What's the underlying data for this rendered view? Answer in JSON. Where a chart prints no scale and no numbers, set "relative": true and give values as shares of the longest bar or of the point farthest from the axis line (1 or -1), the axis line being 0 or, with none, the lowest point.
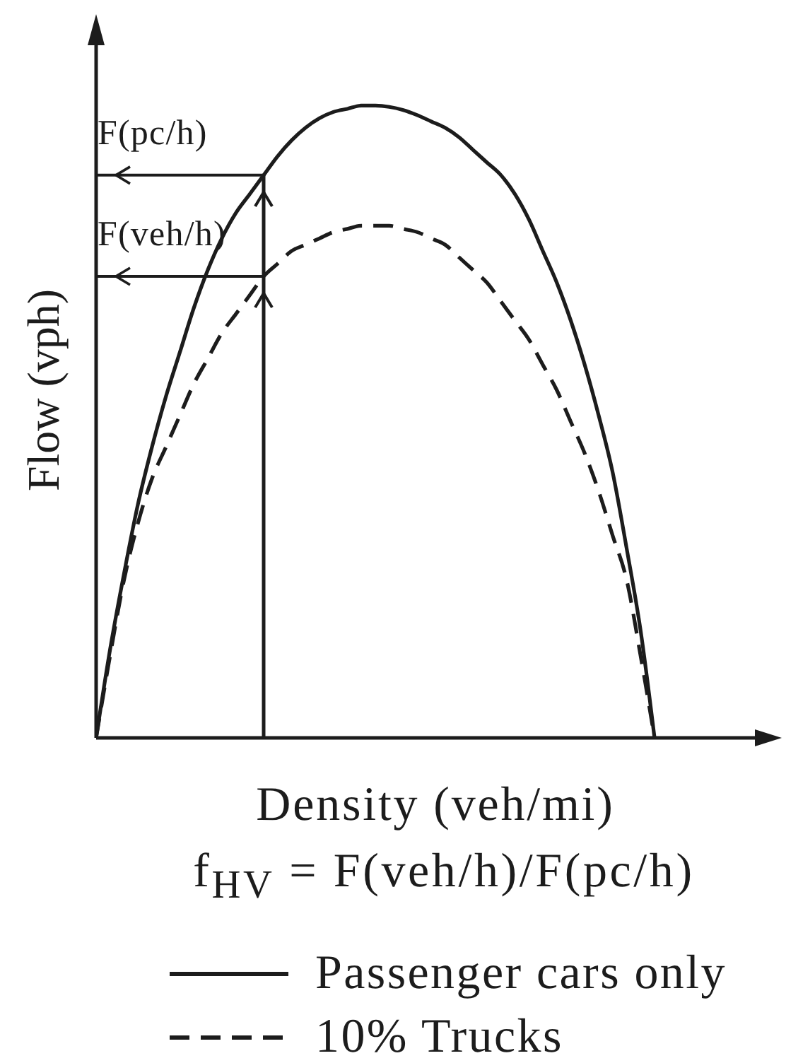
{
  "chart_data": {
    "type": "line",
    "relative": true,
    "xlabel": "Density (veh/mi)",
    "ylabel": "Flow (vph)",
    "categories": [
      null,
      null,
      null,
      null,
      null,
      null,
      null,
      null,
      null,
      null,
      null,
      null,
      null,
      null,
      null,
      null,
      null,
      null,
      null,
      null,
      null,
      null,
      null,
      null,
      null,
      null,
      null,
      null,
      null,
      null,
      null,
      null,
      null,
      null,
      null,
      null,
      null,
      null,
      null,
      null,
      null,
      null,
      null,
      null,
      null,
      null,
      null,
      null,
      null
    ],
    "series": [
      {
        "name": "Passenger cars only",
        "color": "#1c1c1c",
        "line_style": "solid",
        "values": [
          0,
          0.14,
          0.26,
          0.37,
          0.46,
          0.54,
          0.61,
          0.68,
          0.74,
          0.79,
          0.83,
          0.86,
          0.89,
          0.92,
          0.945,
          0.965,
          0.98,
          0.99,
          0.995,
          1,
          1,
          0.998,
          0.993,
          0.985,
          0.975,
          0.965,
          0.95,
          0.93,
          0.91,
          0.89,
          0.86,
          0.82,
          0.77,
          0.72,
          0.66,
          0.59,
          0.51,
          0.42,
          0.3,
          0.17,
          0,
          null,
          null,
          null,
          null,
          null,
          null,
          null,
          null
        ]
      },
      {
        "name": "10% Trucks",
        "color": "#1c1c1c",
        "line_style": "dashed",
        "values": [
          0,
          0.13,
          0.25,
          0.34,
          0.41,
          0.46,
          0.51,
          0.56,
          0.6,
          0.64,
          0.67,
          0.7,
          0.73,
          0.75,
          0.77,
          0.78,
          0.79,
          0.8,
          0.805,
          0.81,
          0.81,
          0.81,
          0.805,
          0.8,
          0.79,
          0.78,
          0.76,
          0.74,
          0.72,
          0.69,
          0.66,
          0.63,
          0.59,
          0.55,
          0.5,
          0.45,
          0.39,
          0.32,
          0.25,
          0.13,
          0,
          null,
          null,
          null,
          null,
          null,
          null,
          null,
          null
        ]
      }
    ],
    "ref_lines": [
      {
        "axis": "y",
        "value": 0.89,
        "label": "F(pc/h)"
      },
      {
        "axis": "y",
        "value": 0.73,
        "label": "F(veh/h)"
      }
    ],
    "annotations": [
      "f$_{HV}$ = F(veh/h)/F(pc/h)"
    ],
    "legend": "bottom",
    "marker": "none"
  }
}
